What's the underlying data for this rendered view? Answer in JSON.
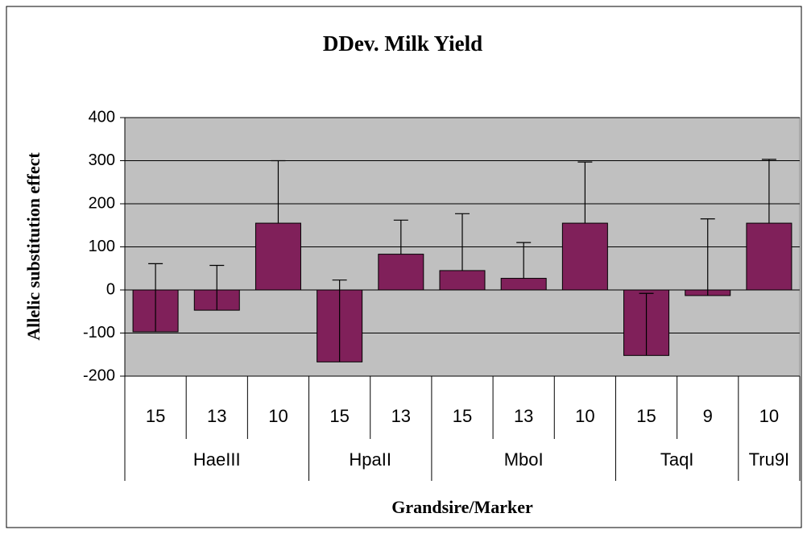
{
  "chart_data": {
    "type": "bar",
    "title": "DDev. Milk Yield",
    "x_label": "Grandsire/Marker",
    "y_label": "Allelic substitution effect",
    "groups": [
      {
        "name": "HaeIII",
        "categories": [
          "15",
          "13",
          "10"
        ]
      },
      {
        "name": "HpaII",
        "categories": [
          "15",
          "13"
        ]
      },
      {
        "name": "MboI",
        "categories": [
          "15",
          "13",
          "10"
        ]
      },
      {
        "name": "TaqI",
        "categories": [
          "15",
          "9"
        ]
      },
      {
        "name": "Tru9I",
        "categories": [
          "10"
        ]
      }
    ],
    "values": [
      -97,
      -47,
      155,
      -167,
      83,
      45,
      27,
      155,
      -152,
      -13,
      155
    ],
    "errors": [
      158,
      104,
      145,
      190,
      79,
      132,
      83,
      142,
      144,
      178,
      148
    ],
    "color": "#80205a",
    "plot_background": "#c0c0c0",
    "ylim": [
      -200,
      400
    ],
    "yticks": [
      -200,
      -100,
      0,
      100,
      200,
      300,
      400
    ],
    "grid": true
  }
}
